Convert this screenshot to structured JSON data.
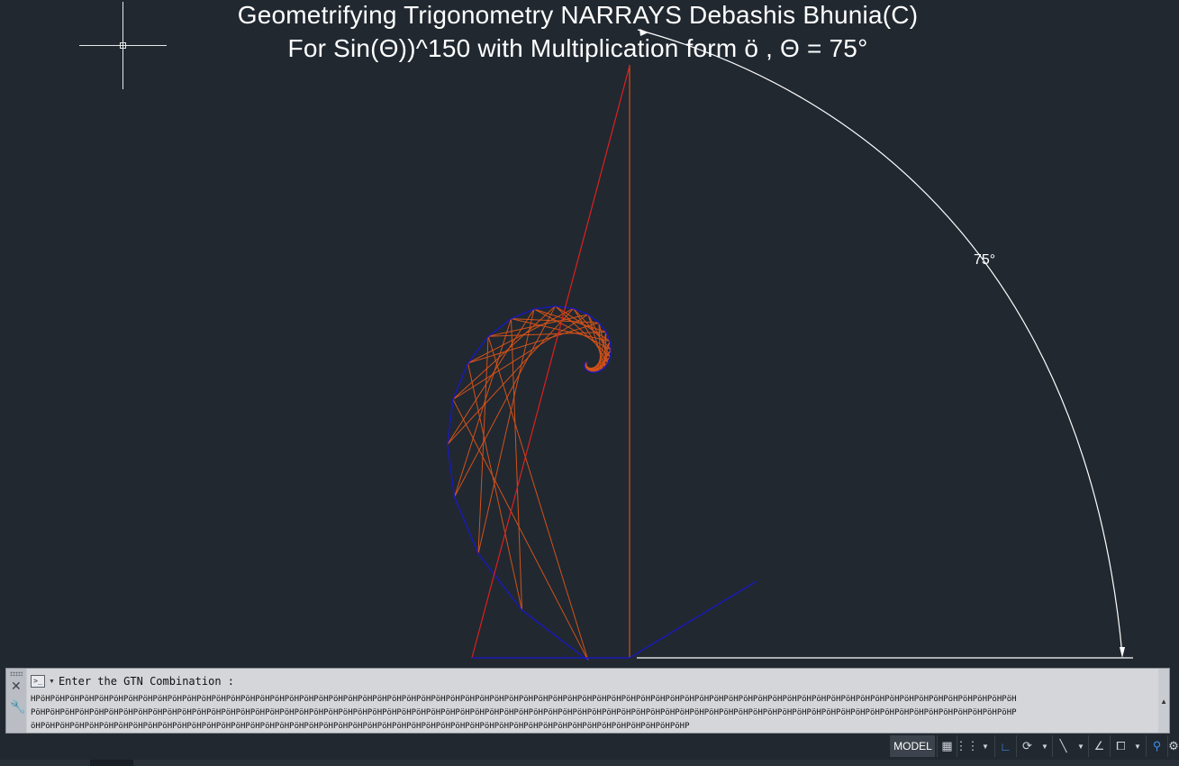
{
  "drawing": {
    "title_line1": "Geometrifying Trigonometry NARRAYS Debashis Bhunia(C)",
    "title_line2": "For Sin(Θ))^150 with Multiplication form ö , Θ = 75°",
    "dimension_label": "75°",
    "theta_degrees": 75,
    "exponent": 150,
    "colors": {
      "background": "#212830",
      "polygon": "#1a1ab4",
      "star": "#d2521a",
      "red_ray": "#dd2020",
      "dimension": "#ffffff"
    }
  },
  "command_line": {
    "prompt_icon": ">_",
    "prompt": "Enter the GTN Combination :",
    "line1": "HPöHPöHPöHPöHPöHPöHPöHPöHPöHPöHPöHPöHPöHPöHPöHPöHPöHPöHPöHPöHPöHPöHPöHPöHPöHPöHPöHPöHPöHPöHPöHPöHPöHPöHPöHPöHPöHPöHPöHPöHPöHPöHPöHPöHPöHPöHPöHPöHPöHPöHPöHPöHPöHPöHPöHPöHPöHPöHPöHPöHPöHPöHPöHPöHPöHPöHPöH",
    "line2": "PöHPöHPöHPöHPöHPöHPöHPöHPöHPöHPöHPöHPöHPöHPöHPöHPöHPöHPöHPöHPöHPöHPöHPöHPöHPöHPöHPöHPöHPöHPöHPöHPöHPöHPöHPöHPöHPöHPöHPöHPöHPöHPöHPöHPöHPöHPöHPöHPöHPöHPöHPöHPöHPöHPöHPöHPöHPöHPöHPöHPöHPöHPöHPöHPöHPöHPöHP",
    "line3": "öHPöHPöHPöHPöHPöHPöHPöHPöHPöHPöHPöHPöHPöHPöHPöHPöHPöHPöHPöHPöHPöHPöHPöHPöHPöHPöHPöHPöHPöHPöHPöHPöHPöHPöHPöHPöHPöHPöHPöHPöHPöHPöHPöHPöHP"
  },
  "status_bar": {
    "model_label": "MODEL",
    "icons": [
      "grid-display-icon",
      "snap-mode-icon",
      "ortho-mode-icon",
      "polar-tracking-icon",
      "isometric-drafting-icon",
      "dynamic-ucs-icon",
      "selection-cycling-icon",
      "annotation-monitor-icon"
    ]
  }
}
